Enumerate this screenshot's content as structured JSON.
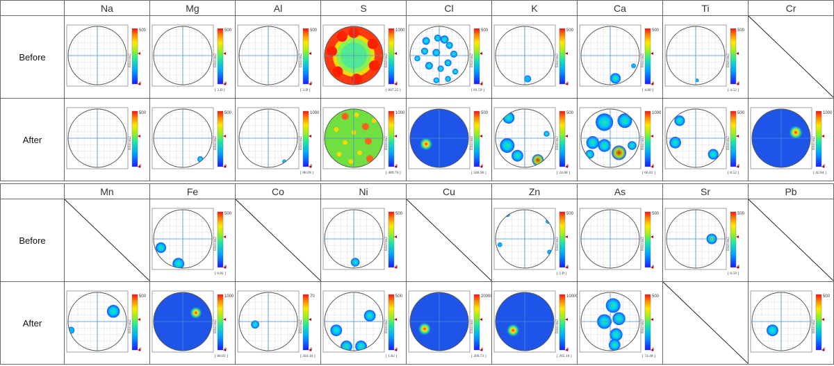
{
  "table1": {
    "elements": [
      "Na",
      "Mg",
      "Al",
      "S",
      "Cl",
      "K",
      "Ca",
      "Ti",
      "Cr"
    ],
    "rows": [
      {
        "label": "Before",
        "cells": [
          {
            "max": "500",
            "val": "",
            "blobs": []
          },
          {
            "max": "500",
            "val": "[ 3.D ]",
            "blobs": []
          },
          {
            "max": "500",
            "val": "[ 3.D ]",
            "blobs": []
          },
          {
            "max": "1000",
            "val": "[ 807.25 ]",
            "blobs": "sulfur"
          },
          {
            "max": "500",
            "val": "[ 81.59 ]",
            "blobs": [
              [
                0.18,
                -0.55,
                0.14,
                0.3
              ],
              [
                -0.05,
                -0.6,
                0.12,
                0.3
              ],
              [
                0.35,
                -0.35,
                0.12,
                0.3
              ],
              [
                -0.45,
                -0.5,
                0.13,
                0.3
              ],
              [
                -0.5,
                -0.15,
                0.12,
                0.3
              ],
              [
                -0.1,
                -0.1,
                0.13,
                0.3
              ],
              [
                0.5,
                -0.05,
                0.12,
                0.3
              ],
              [
                -0.35,
                0.35,
                0.13,
                0.3
              ],
              [
                0.3,
                0.25,
                0.12,
                0.3
              ],
              [
                0.05,
                0.45,
                0.11,
                0.3
              ],
              [
                -0.1,
                0.85,
                0.1,
                0.3
              ],
              [
                0.3,
                0.8,
                0.1,
                0.3
              ],
              [
                0.55,
                0.55,
                0.1,
                0.3
              ],
              [
                -0.75,
                0.1,
                0.1,
                0.3
              ]
            ]
          },
          {
            "max": "500",
            "val": "",
            "blobs": [
              [
                0.1,
                0.8,
                0.12,
                0.25
              ]
            ]
          },
          {
            "max": "500",
            "val": "[ 4.80 ]",
            "blobs": [
              [
                0.18,
                0.78,
                0.18,
                0.28
              ],
              [
                0.8,
                0.35,
                0.08,
                0.25
              ]
            ]
          },
          {
            "max": "500",
            "val": "[ 4.52 ]",
            "blobs": [
              [
                0.05,
                0.85,
                0.06,
                0.2
              ]
            ]
          },
          "none"
        ]
      },
      {
        "label": "After",
        "cells": [
          {
            "max": "500",
            "val": "",
            "blobs": []
          },
          {
            "max": "500",
            "val": "",
            "blobs": [
              [
                0.6,
                0.72,
                0.1,
                0.35
              ]
            ]
          },
          {
            "max": "1000",
            "val": "[ 88.09 ]",
            "blobs": [
              [
                0.55,
                0.8,
                0.07,
                0.35
              ]
            ]
          },
          {
            "max": "1000",
            "val": "[ 489.70 ]",
            "blobs": "sulfur2"
          },
          {
            "max": "500",
            "val": "[ 348.96 ]",
            "blobs": "full",
            "hot": [
              [
                -0.45,
                0.2,
                0.15,
                1.0
              ]
            ]
          },
          {
            "max": "500",
            "val": "[ 24.08 ]",
            "blobs": [
              [
                -0.55,
                -0.7,
                0.2,
                0.35
              ],
              [
                -0.6,
                0.25,
                0.25,
                0.4
              ],
              [
                -0.25,
                0.6,
                0.2,
                0.35
              ],
              [
                0.45,
                0.75,
                0.2,
                0.9
              ],
              [
                0.75,
                -0.15,
                0.1,
                0.3
              ]
            ]
          },
          {
            "max": "1000",
            "val": "[ 66.82 ]",
            "blobs": [
              [
                -0.2,
                -0.55,
                0.3,
                0.4
              ],
              [
                0.5,
                -0.6,
                0.25,
                0.35
              ],
              [
                -0.6,
                0.15,
                0.22,
                0.4
              ],
              [
                -0.2,
                0.25,
                0.22,
                0.45
              ],
              [
                0.3,
                0.5,
                0.25,
                1.0
              ],
              [
                0.75,
                0.25,
                0.15,
                0.35
              ],
              [
                -0.7,
                0.55,
                0.15,
                0.35
              ]
            ]
          },
          {
            "max": "500",
            "val": "[ 8.52 ]",
            "blobs": [
              [
                -0.55,
                -0.6,
                0.18,
                0.35
              ],
              [
                -0.7,
                0.15,
                0.2,
                0.35
              ],
              [
                0.6,
                0.55,
                0.18,
                0.3
              ]
            ]
          },
          {
            "max": "1000",
            "val": "[ 42.84 ]",
            "blobs": "full",
            "hot": [
              [
                0.5,
                -0.2,
                0.16,
                1.0
              ]
            ]
          }
        ]
      }
    ]
  },
  "table2": {
    "elements": [
      "Mn",
      "Fe",
      "Co",
      "Ni",
      "Cu",
      "Zn",
      "As",
      "Sr",
      "Pb"
    ],
    "rows": [
      {
        "label": "Before",
        "cells": [
          "none",
          {
            "max": "500",
            "val": "[ 0.81 ]",
            "blobs": [
              [
                -0.75,
                0.3,
                0.18,
                0.3
              ],
              [
                -0.15,
                0.85,
                0.2,
                0.3
              ]
            ]
          },
          "none",
          {
            "max": "500",
            "val": "",
            "blobs": [
              [
                0.05,
                0.8,
                0.15,
                0.3
              ]
            ]
          },
          "none",
          {
            "max": "500",
            "val": "[ 2.D ]",
            "blobs": [
              [
                -0.6,
                -0.85,
                0.1,
                0.25
              ],
              [
                0.8,
                -0.6,
                0.08,
                0.25
              ],
              [
                -0.85,
                0.2,
                0.08,
                0.25
              ],
              [
                0.85,
                0.45,
                0.08,
                0.25
              ]
            ]
          },
          {
            "max": "500",
            "val": "",
            "blobs": []
          },
          {
            "max": "500",
            "val": "[ 6.59 ]",
            "blobs": [
              [
                0.55,
                0.0,
                0.18,
                0.55
              ]
            ]
          },
          "none"
        ]
      },
      {
        "label": "After",
        "cells": [
          {
            "max": "500",
            "val": "",
            "blobs": [
              [
                0.55,
                -0.35,
                0.22,
                0.3
              ],
              [
                -0.9,
                0.3,
                0.12,
                0.25
              ]
            ]
          },
          {
            "max": "1000",
            "val": "[ 88.82 ]",
            "blobs": "full",
            "hot": [
              [
                0.45,
                -0.3,
                0.14,
                1.0
              ]
            ]
          },
          {
            "max": "70",
            "val": "[ 203.10 ]",
            "blobs": [
              [
                -0.45,
                0.1,
                0.14,
                0.3
              ]
            ]
          },
          {
            "max": "500",
            "val": "[ 1.82 ]",
            "blobs": [
              [
                -0.6,
                0.3,
                0.2,
                0.3
              ],
              [
                0.55,
                -0.2,
                0.2,
                0.3
              ],
              [
                -0.25,
                0.85,
                0.2,
                0.3
              ],
              [
                0.25,
                0.85,
                0.2,
                0.3
              ]
            ]
          },
          {
            "max": "20000",
            "val": "[ 209.72 ]",
            "blobs": "full",
            "hot": [
              [
                -0.5,
                0.25,
                0.15,
                1.0
              ]
            ]
          },
          {
            "max": "10000",
            "val": "[ 205.10 ]",
            "blobs": "full",
            "hot": [
              [
                -0.4,
                0.3,
                0.15,
                1.0
              ]
            ]
          },
          {
            "max": "500",
            "val": "[ 74.48 ]",
            "blobs": [
              [
                0.1,
                -0.55,
                0.25,
                0.35
              ],
              [
                0.3,
                -0.1,
                0.22,
                0.4
              ],
              [
                -0.2,
                0.0,
                0.25,
                0.45
              ],
              [
                0.2,
                0.45,
                0.22,
                0.4
              ],
              [
                0.15,
                0.8,
                0.2,
                0.35
              ]
            ]
          },
          "none",
          {
            "max": "500",
            "val": "",
            "blobs": [
              [
                -0.3,
                0.3,
                0.2,
                0.35
              ]
            ]
          }
        ]
      }
    ]
  },
  "colorbar_unit": "E04/cm2"
}
